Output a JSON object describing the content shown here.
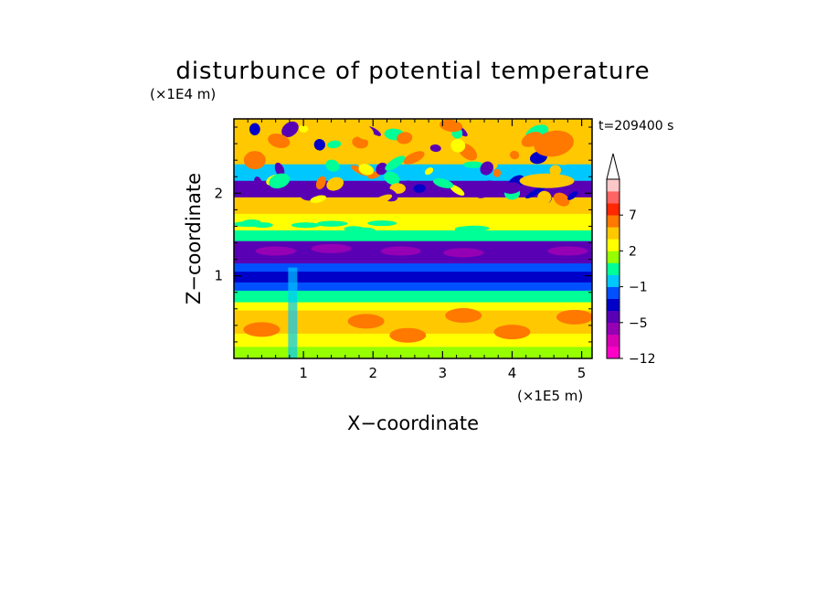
{
  "chart_data": {
    "type": "heatmap",
    "title": "disturbunce of potential temperature",
    "xlabel": "X−coordinate",
    "ylabel": "Z−coordinate",
    "x_scale_label": "(×1E5 m)",
    "y_scale_label": "(×1E4 m)",
    "time_label": "t=209400 s",
    "xlim": [
      0,
      5.15
    ],
    "ylim": [
      0,
      2.9
    ],
    "x_ticks": [
      "1",
      "2",
      "3",
      "4",
      "5"
    ],
    "y_ticks": [
      "1",
      "2"
    ],
    "colorbar": {
      "levels": [
        -12,
        -11,
        -8,
        -5,
        -4,
        -3,
        -1,
        0,
        1,
        2,
        3,
        5,
        7,
        9,
        11
      ],
      "labels": [
        "−12",
        "−5",
        "−1",
        "2",
        "7"
      ],
      "colors": [
        "#ff00c8",
        "#d800b4",
        "#9600b4",
        "#5a00b4",
        "#0000c8",
        "#0050ff",
        "#00c8ff",
        "#00ff96",
        "#96ff00",
        "#ffff00",
        "#ffc800",
        "#ff7800",
        "#ff2800",
        "#ff6464",
        "#ffc8c8"
      ],
      "extend": "max"
    },
    "bands": [
      {
        "z0": 2.9,
        "z1": 2.55,
        "value": 3
      },
      {
        "z0": 2.55,
        "z1": 2.35,
        "value": 4
      },
      {
        "z0": 2.35,
        "z1": 2.15,
        "value": -1
      },
      {
        "z0": 2.15,
        "z1": 1.95,
        "value": -5
      },
      {
        "z0": 1.95,
        "z1": 1.75,
        "value": 4
      },
      {
        "z0": 1.75,
        "z1": 1.55,
        "value": 2
      },
      {
        "z0": 1.55,
        "z1": 1.42,
        "value": 0
      },
      {
        "z0": 1.42,
        "z1": 1.15,
        "value": -5
      },
      {
        "z0": 1.15,
        "z1": 1.05,
        "value": -2
      },
      {
        "z0": 1.05,
        "z1": 0.92,
        "value": -4
      },
      {
        "z0": 0.92,
        "z1": 0.82,
        "value": -2
      },
      {
        "z0": 0.82,
        "z1": 0.68,
        "value": 0
      },
      {
        "z0": 0.68,
        "z1": 0.58,
        "value": 2
      },
      {
        "z0": 0.58,
        "z1": 0.3,
        "value": 3
      },
      {
        "z0": 0.3,
        "z1": 0.14,
        "value": 2
      },
      {
        "z0": 0.14,
        "z1": 0.0,
        "value": 1
      }
    ]
  }
}
